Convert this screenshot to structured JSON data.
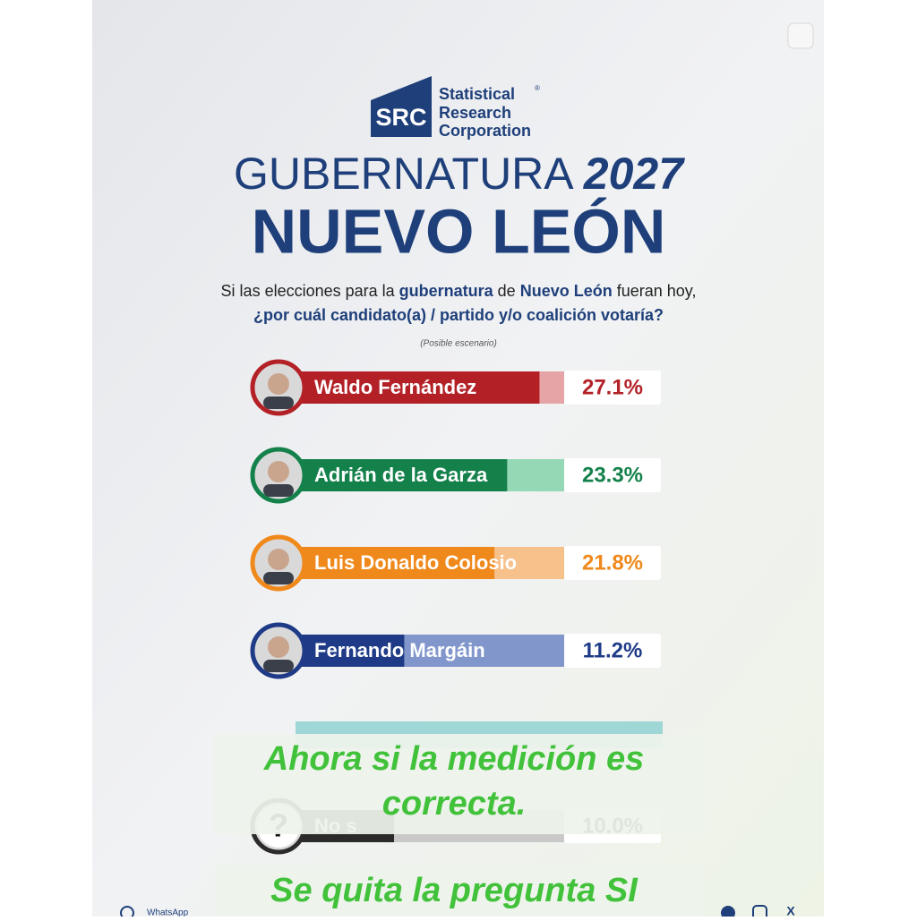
{
  "logo": {
    "mark": "SRC",
    "lines": [
      "Statistical",
      "Research",
      "Corporation"
    ],
    "registered": "®"
  },
  "chart_data": {
    "type": "bar",
    "title": "GUBERNATURA",
    "title_year": "2027",
    "subtitle": "NUEVO LEÓN",
    "question": [
      [
        "Si las elecciones para la ",
        "gubernatura",
        " de ",
        "Nuevo León",
        " fueran hoy,"
      ],
      [
        "¿por cuál candidato(a) / partido y/o coalición votaría?"
      ]
    ],
    "note": "(Posible escenario)",
    "categories": [
      "Waldo Fernández",
      "Adrián de la Garza",
      "Luis Donaldo Colosio",
      "Fernando Margáin",
      "No s"
    ],
    "values": [
      27.1,
      23.3,
      21.8,
      11.2,
      10.0
    ],
    "value_labels": [
      "27.1%",
      "23.3%",
      "21.8%",
      "11.2%",
      "10.0%"
    ],
    "colors": [
      "#b32127",
      "#14814b",
      "#f0891b",
      "#1f3b87",
      "#2b2b2b"
    ],
    "track_colors": [
      "#e7a4a6",
      "#94d8b6",
      "#f7c18c",
      "#8196cb",
      "#c9c9c9"
    ],
    "unknown_icon": "?",
    "xlim": [
      0,
      30
    ]
  },
  "overlay": [
    "Ahora si la medición es",
    "correcta.",
    "Se quita la pregunta SI"
  ],
  "footer": {
    "whatsapp": "WhatsApp",
    "x": "X"
  }
}
